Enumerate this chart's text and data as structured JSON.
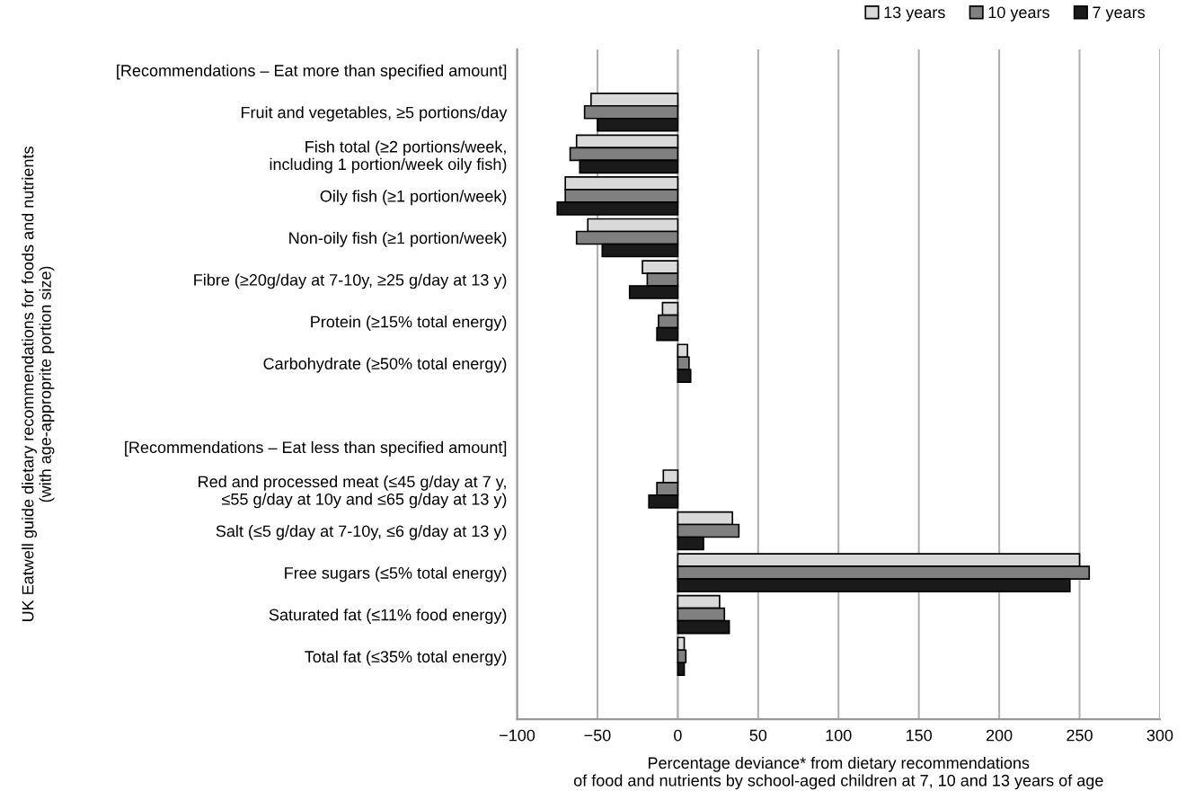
{
  "chart_data": {
    "type": "bar",
    "orientation": "horizontal",
    "xlabel": "Percentage deviance* from dietary recommendations\nof food and nutrients by school-aged children at 7, 10 and 13 years of age",
    "ylabel": "UK Eatwell guide dietary recommendations for foods and nutrients\n(with age-approprite portion size)",
    "categories": [
      "[Recommendations – Eat more than specified amount]",
      "Fruit and vegetables, ≥5 portions/day",
      "Fish total (≥2 portions/week,\nincluding 1 portion/week oily fish)",
      "Oily fish (≥1 portion/week)",
      "Non-oily fish (≥1 portion/week)",
      "Fibre (≥20g/day at 7-10y, ≥25 g/day at 13 y)",
      "Protein (≥15% total energy)",
      "Carbohydrate (≥50% total energy)",
      null,
      "[Recommendations – Eat less than specified amount]",
      "Red and processed meat (≤45 g/day at 7 y,\n≤55 g/day at 10y and ≤65 g/day at 13 y)",
      "Salt (≤5 g/day at 7-10y, ≤6 g/day at 13 y)",
      "Free sugars (≤5% total energy)",
      "Saturated fat (≤11% food energy)",
      "Total fat (≤35% total energy)",
      null
    ],
    "series": [
      {
        "name": "13 years",
        "color": "#d9d9d9",
        "values": [
          null,
          -54,
          -63,
          -70,
          -56,
          -22,
          -9.5,
          6,
          null,
          null,
          -9,
          34,
          250,
          26,
          4,
          null
        ]
      },
      {
        "name": "10 years",
        "color": "#808080",
        "values": [
          null,
          -58,
          -67,
          -70,
          -63,
          -19,
          -12,
          7,
          null,
          null,
          -13,
          38,
          256,
          29,
          5,
          null
        ]
      },
      {
        "name": "7 years",
        "color": "#1a1a1a",
        "values": [
          null,
          -50,
          -61,
          -75,
          -47,
          -30,
          -13,
          8,
          null,
          null,
          -18,
          16,
          244,
          32,
          4,
          null
        ]
      }
    ],
    "xlim": [
      -100,
      300
    ],
    "xticks": [
      {
        "value": -100,
        "label": "−100"
      },
      {
        "value": -50,
        "label": "−50"
      },
      0,
      50,
      100,
      150,
      200,
      250,
      300
    ],
    "grid": "x",
    "legend": "top right"
  }
}
